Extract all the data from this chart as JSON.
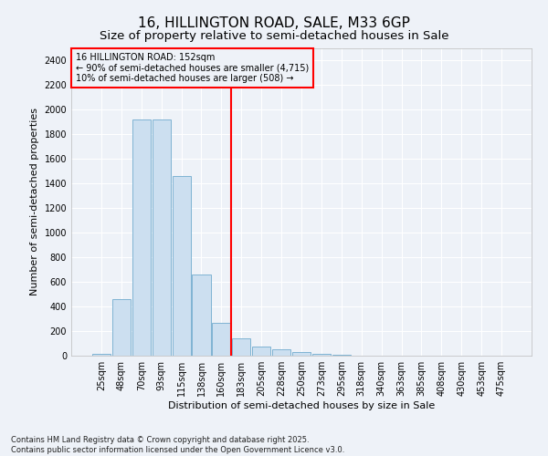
{
  "title": "16, HILLINGTON ROAD, SALE, M33 6GP",
  "subtitle": "Size of property relative to semi-detached houses in Sale",
  "xlabel": "Distribution of semi-detached houses by size in Sale",
  "ylabel": "Number of semi-detached properties",
  "footer": "Contains HM Land Registry data © Crown copyright and database right 2025.\nContains public sector information licensed under the Open Government Licence v3.0.",
  "bar_labels": [
    "25sqm",
    "48sqm",
    "70sqm",
    "93sqm",
    "115sqm",
    "138sqm",
    "160sqm",
    "183sqm",
    "205sqm",
    "228sqm",
    "250sqm",
    "273sqm",
    "295sqm",
    "318sqm",
    "340sqm",
    "363sqm",
    "385sqm",
    "408sqm",
    "430sqm",
    "453sqm",
    "475sqm"
  ],
  "bar_values": [
    15,
    460,
    1920,
    1920,
    1460,
    660,
    270,
    140,
    75,
    50,
    30,
    15,
    5,
    2,
    1,
    0,
    0,
    0,
    0,
    0,
    0
  ],
  "bar_color": "#ccdff0",
  "bar_edge_color": "#7fb3d3",
  "vline_x": 6.5,
  "vline_color": "red",
  "annotation_text": "16 HILLINGTON ROAD: 152sqm\n← 90% of semi-detached houses are smaller (4,715)\n10% of semi-detached houses are larger (508) →",
  "annotation_box_color": "red",
  "ylim": [
    0,
    2500
  ],
  "yticks": [
    0,
    200,
    400,
    600,
    800,
    1000,
    1200,
    1400,
    1600,
    1800,
    2000,
    2200,
    2400
  ],
  "bg_color": "#eef2f8",
  "grid_color": "#ffffff",
  "title_fontsize": 11,
  "subtitle_fontsize": 9.5,
  "axis_label_fontsize": 8,
  "tick_fontsize": 7,
  "footer_fontsize": 6,
  "annotation_fontsize": 7
}
